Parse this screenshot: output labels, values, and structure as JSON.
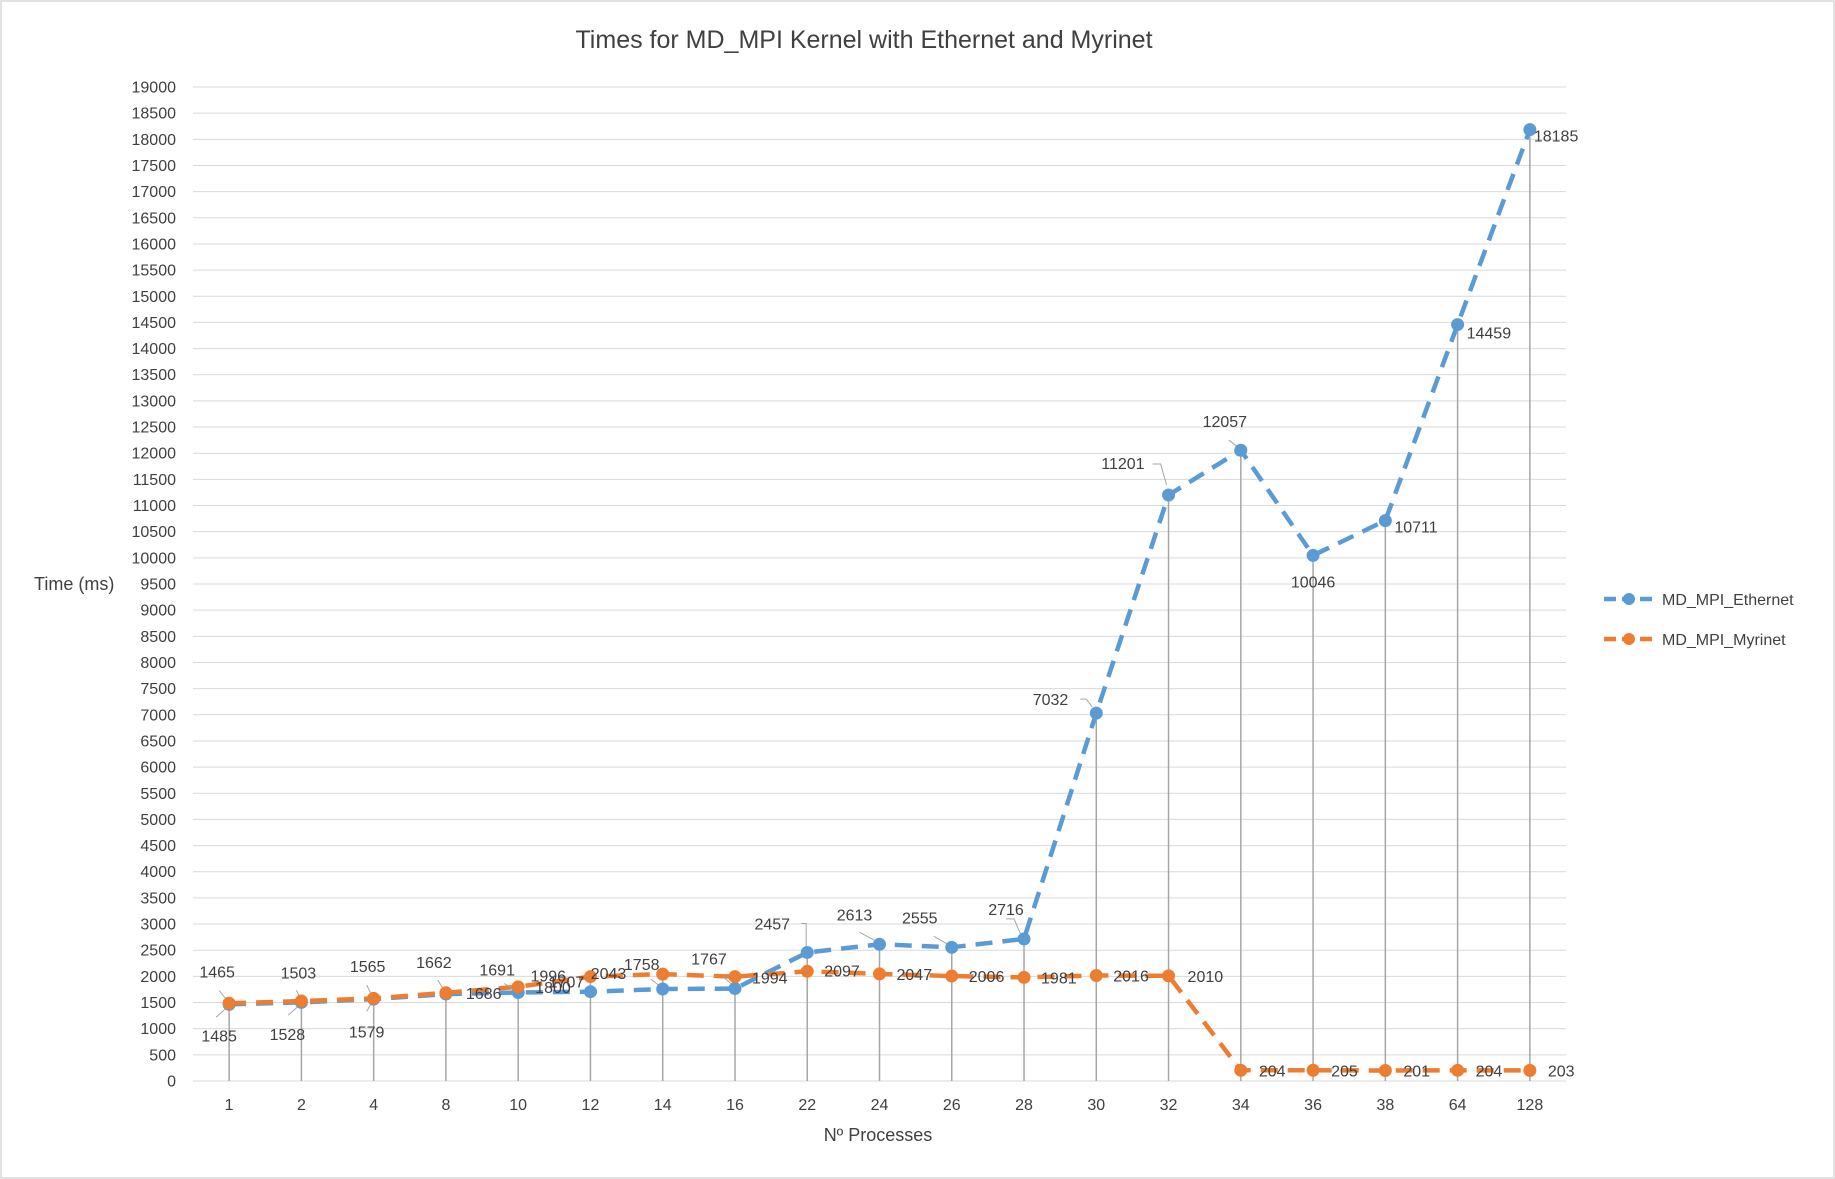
{
  "chart_data": {
    "type": "line",
    "title": "Times for MD_MPI Kernel with Ethernet and Myrinet",
    "xlabel": "Nº Processes",
    "ylabel": "Time (ms)",
    "categories": [
      "1",
      "2",
      "4",
      "8",
      "10",
      "12",
      "14",
      "16",
      "22",
      "24",
      "26",
      "28",
      "30",
      "32",
      "34",
      "36",
      "38",
      "64",
      "128"
    ],
    "ylim": [
      0,
      19000
    ],
    "ytick_step": 500,
    "grid": true,
    "legend_position": "right",
    "line_style": "dashed",
    "markers": "circle",
    "drop_lines": true,
    "series": [
      {
        "name": "MD_MPI_Ethernet",
        "color": "#5b9bd5",
        "values": [
          1465,
          1503,
          1565,
          1662,
          1691,
          1707,
          1758,
          1767,
          2457,
          2613,
          2555,
          2716,
          7032,
          11201,
          12057,
          10046,
          10711,
          14459,
          18185
        ],
        "labels": [
          "1465",
          "1503",
          "1565",
          "1662",
          "1691",
          "1707",
          "1758",
          "1767",
          "2457",
          "2613",
          "2555",
          "2716",
          "7032",
          "11201",
          "12057",
          "10046",
          "10711",
          "14459",
          "18185"
        ]
      },
      {
        "name": "MD_MPI_Myrinet",
        "color": "#ed7d31",
        "values": [
          1485,
          1528,
          1579,
          1686,
          1800,
          1996,
          2043,
          1994,
          2097,
          2047,
          2006,
          1981,
          2016,
          2010,
          204,
          205,
          201,
          204,
          203
        ],
        "labels": [
          "1485",
          "1528",
          "1579",
          "1686",
          "1800",
          "1996",
          "2043",
          "1994",
          "2097",
          "2047",
          "2006",
          "1981",
          "2016",
          "2010",
          "204",
          "205",
          "201",
          "204",
          "203"
        ]
      }
    ]
  }
}
